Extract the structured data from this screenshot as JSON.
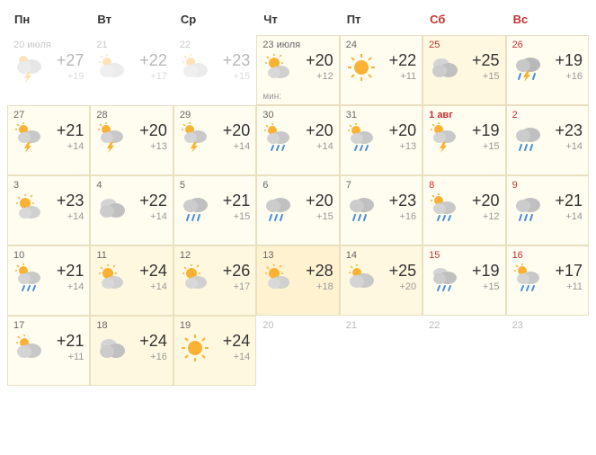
{
  "headers": [
    {
      "label": "Пн",
      "weekend": false
    },
    {
      "label": "Вт",
      "weekend": false
    },
    {
      "label": "Ср",
      "weekend": false
    },
    {
      "label": "Чт",
      "weekend": false
    },
    {
      "label": "Пт",
      "weekend": false
    },
    {
      "label": "Сб",
      "weekend": true
    },
    {
      "label": "Вс",
      "weekend": true
    }
  ],
  "days": [
    {
      "date": "20 июля",
      "hi": "+27",
      "lo": "+19",
      "icon": "storm",
      "past": true,
      "weekend": false
    },
    {
      "date": "21",
      "hi": "+22",
      "lo": "+17",
      "icon": "partly",
      "past": true,
      "weekend": false
    },
    {
      "date": "22",
      "hi": "+23",
      "lo": "+15",
      "icon": "partly",
      "past": true,
      "weekend": false
    },
    {
      "date": "23 июля",
      "hi": "+20",
      "lo": "+12",
      "icon": "sunny",
      "weekend": false,
      "shade": "shade1",
      "min_prefix": "мин:"
    },
    {
      "date": "24",
      "hi": "+22",
      "lo": "+11",
      "icon": "sun",
      "weekend": false,
      "shade": "shade1"
    },
    {
      "date": "25",
      "hi": "+25",
      "lo": "+15",
      "icon": "cloudy",
      "weekend": true,
      "shade": "shade2"
    },
    {
      "date": "26",
      "hi": "+19",
      "lo": "+16",
      "icon": "rainstorm",
      "weekend": true,
      "shade": "shade1"
    },
    {
      "date": "27",
      "hi": "+21",
      "lo": "+14",
      "icon": "sunstorm",
      "weekend": false,
      "shade": "shade1"
    },
    {
      "date": "28",
      "hi": "+20",
      "lo": "+13",
      "icon": "sunstorm",
      "weekend": false,
      "shade": "shade1"
    },
    {
      "date": "29",
      "hi": "+20",
      "lo": "+14",
      "icon": "sunstorm",
      "weekend": false,
      "shade": "shade1"
    },
    {
      "date": "30",
      "hi": "+20",
      "lo": "+14",
      "icon": "sunrain",
      "weekend": false,
      "shade": "shade1"
    },
    {
      "date": "31",
      "hi": "+20",
      "lo": "+13",
      "icon": "sunrain",
      "weekend": false,
      "shade": "shade1"
    },
    {
      "date": "1 авг",
      "hi": "+19",
      "lo": "+15",
      "icon": "sunstorm",
      "weekend": true,
      "shade": "shade1",
      "new_month": true
    },
    {
      "date": "2",
      "hi": "+23",
      "lo": "+14",
      "icon": "rain",
      "weekend": true,
      "shade": "shade1"
    },
    {
      "date": "3",
      "hi": "+23",
      "lo": "+14",
      "icon": "sunny",
      "weekend": false,
      "shade": "shade1"
    },
    {
      "date": "4",
      "hi": "+22",
      "lo": "+14",
      "icon": "cloudy",
      "weekend": false,
      "shade": "shade1"
    },
    {
      "date": "5",
      "hi": "+21",
      "lo": "+15",
      "icon": "rain",
      "weekend": false,
      "shade": "shade1"
    },
    {
      "date": "6",
      "hi": "+20",
      "lo": "+15",
      "icon": "rain",
      "weekend": false,
      "shade": "shade1"
    },
    {
      "date": "7",
      "hi": "+23",
      "lo": "+16",
      "icon": "rain",
      "weekend": false,
      "shade": "shade1"
    },
    {
      "date": "8",
      "hi": "+20",
      "lo": "+12",
      "icon": "sunrain",
      "weekend": true,
      "shade": "shade1"
    },
    {
      "date": "9",
      "hi": "+21",
      "lo": "+14",
      "icon": "rain",
      "weekend": true,
      "shade": "shade1"
    },
    {
      "date": "10",
      "hi": "+21",
      "lo": "+14",
      "icon": "sunrain",
      "weekend": false,
      "shade": "shade1"
    },
    {
      "date": "11",
      "hi": "+24",
      "lo": "+14",
      "icon": "sunny",
      "weekend": false,
      "shade": "shade2"
    },
    {
      "date": "12",
      "hi": "+26",
      "lo": "+17",
      "icon": "sunny",
      "weekend": false,
      "shade": "shade2"
    },
    {
      "date": "13",
      "hi": "+28",
      "lo": "+18",
      "icon": "sunny",
      "weekend": false,
      "shade": "shade3"
    },
    {
      "date": "14",
      "hi": "+25",
      "lo": "+20",
      "icon": "partly",
      "weekend": false,
      "shade": "shade2"
    },
    {
      "date": "15",
      "hi": "+19",
      "lo": "+15",
      "icon": "cloudrain",
      "weekend": true,
      "shade": "shade1"
    },
    {
      "date": "16",
      "hi": "+17",
      "lo": "+11",
      "icon": "sunrain",
      "weekend": true,
      "shade": "shade1"
    },
    {
      "date": "17",
      "hi": "+21",
      "lo": "+11",
      "icon": "partly",
      "weekend": false,
      "shade": "shade1"
    },
    {
      "date": "18",
      "hi": "+24",
      "lo": "+16",
      "icon": "cloudy",
      "weekend": false,
      "shade": "shade2"
    },
    {
      "date": "19",
      "hi": "+24",
      "lo": "+14",
      "icon": "sun",
      "weekend": false,
      "shade": "shade2"
    },
    {
      "date": "20",
      "future": true,
      "weekend": false
    },
    {
      "date": "21",
      "future": true,
      "weekend": false
    },
    {
      "date": "22",
      "future": true,
      "weekend": true
    },
    {
      "date": "23",
      "future": true,
      "weekend": true
    }
  ],
  "colors": {
    "sun": "#f9b233",
    "cloud_light": "#d0d0d0",
    "cloud_dark": "#b8b8b8",
    "rain": "#4a90d9",
    "lightning": "#f9b233"
  }
}
